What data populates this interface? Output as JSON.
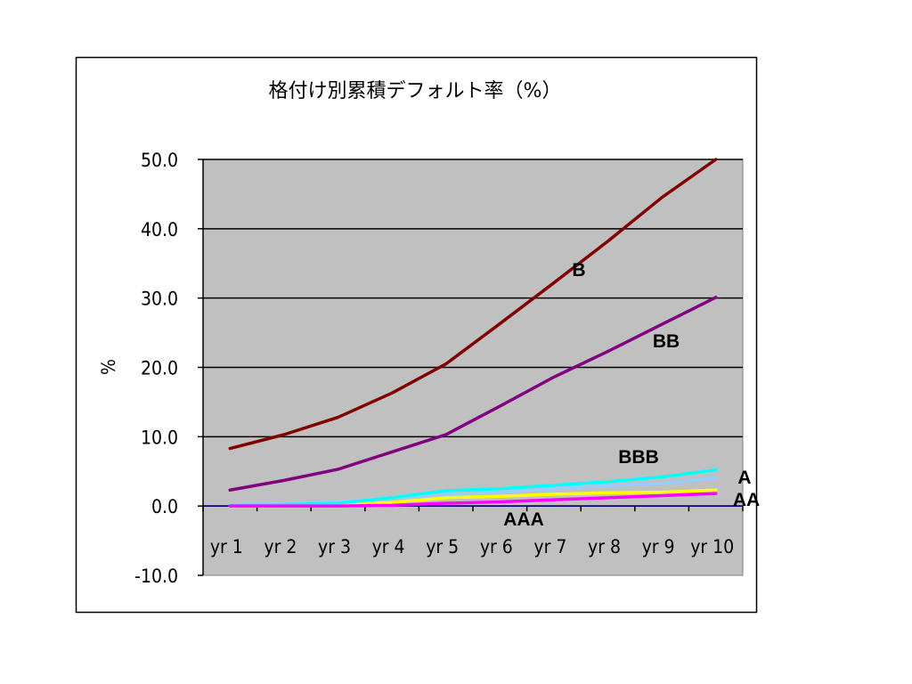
{
  "chart_data": {
    "type": "line",
    "title": "格付け別累積デフォルト率（%）",
    "xlabel": "",
    "ylabel": "%",
    "ylim": [
      -10,
      50
    ],
    "yticks": [
      "50.0",
      "40.0",
      "30.0",
      "20.0",
      "10.0",
      "0.0",
      "-10.0"
    ],
    "ytick_values": [
      50,
      40,
      30,
      20,
      10,
      0,
      -10
    ],
    "grid": true,
    "legend": "none (series labeled directly on chart)",
    "categories": [
      "yr 1",
      "yr 2",
      "yr 3",
      "yr 4",
      "yr 5",
      "yr 6",
      "yr 7",
      "yr 8",
      "yr 9",
      "yr 10"
    ],
    "series": [
      {
        "name": "B",
        "color": "#800000",
        "values": [
          8.3,
          10.3,
          12.8,
          16.3,
          20.5,
          26.3,
          32.2,
          38.2,
          44.5,
          50.0
        ]
      },
      {
        "name": "BB",
        "color": "#800080",
        "values": [
          2.3,
          3.7,
          5.3,
          7.8,
          10.3,
          14.4,
          18.6,
          22.3,
          26.2,
          30.1
        ]
      },
      {
        "name": "BBB",
        "color": "#99CCFF",
        "values": [
          0.2,
          0.4,
          0.6,
          1.2,
          1.6,
          2.0,
          2.5,
          2.9,
          3.3,
          4.0
        ]
      },
      {
        "name": "A",
        "color": "#00FFFF",
        "values": [
          0.1,
          0.2,
          0.4,
          1.2,
          2.2,
          2.5,
          3.0,
          3.5,
          4.2,
          5.2
        ]
      },
      {
        "name": "AA",
        "color": "#FFFF00",
        "values": [
          0.0,
          0.0,
          0.2,
          0.5,
          1.2,
          1.4,
          1.7,
          1.9,
          2.0,
          2.3
        ]
      },
      {
        "name": "AAA",
        "color": "#FF00FF",
        "values": [
          0.0,
          0.0,
          0.0,
          0.1,
          0.4,
          0.6,
          0.9,
          1.2,
          1.5,
          1.8
        ]
      }
    ]
  }
}
